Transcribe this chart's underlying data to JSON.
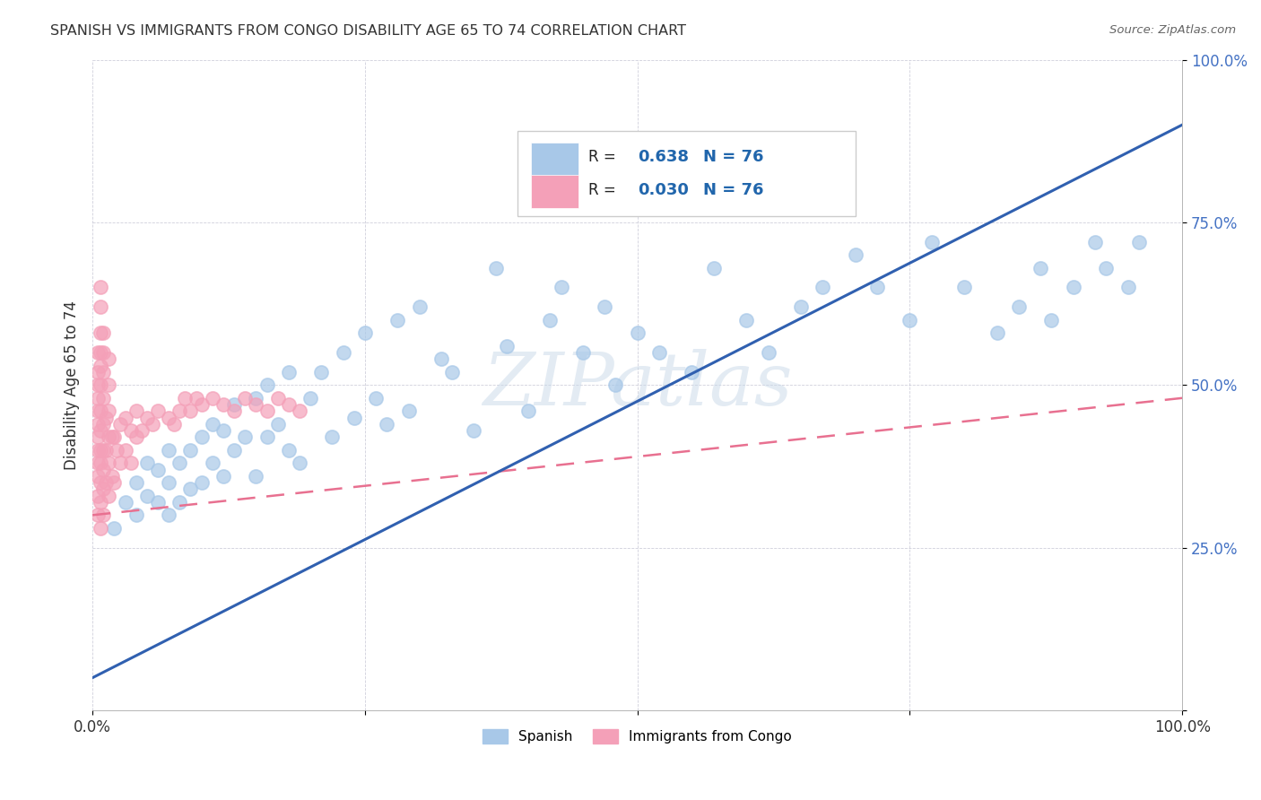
{
  "title": "SPANISH VS IMMIGRANTS FROM CONGO DISABILITY AGE 65 TO 74 CORRELATION CHART",
  "source_text": "Source: ZipAtlas.com",
  "ylabel": "Disability Age 65 to 74",
  "xlim": [
    0,
    1.0
  ],
  "ylim": [
    0,
    1.0
  ],
  "xtick_positions": [
    0.0,
    0.25,
    0.5,
    0.75,
    1.0
  ],
  "ytick_positions": [
    0.0,
    0.25,
    0.5,
    0.75,
    1.0
  ],
  "xtick_labels": [
    "0.0%",
    "",
    "",
    "",
    "100.0%"
  ],
  "ytick_labels": [
    "",
    "25.0%",
    "50.0%",
    "75.0%",
    "100.0%"
  ],
  "spanish_R": 0.638,
  "spanish_N": 76,
  "congo_R": 0.03,
  "congo_N": 76,
  "blue_scatter_color": "#a8c8e8",
  "pink_scatter_color": "#f4a0b8",
  "blue_line_color": "#3060b0",
  "pink_line_color": "#e87090",
  "tick_color": "#4472c4",
  "legend_R_color": "#2166ac",
  "watermark": "ZIPatlas",
  "title_color": "#333333",
  "source_color": "#666666",
  "blue_trend_start_y": 0.05,
  "blue_trend_end_y": 0.9,
  "pink_trend_start_y": 0.3,
  "pink_trend_end_y": 0.48,
  "spanish_x": [
    0.02,
    0.03,
    0.04,
    0.04,
    0.05,
    0.05,
    0.06,
    0.06,
    0.07,
    0.07,
    0.07,
    0.08,
    0.08,
    0.09,
    0.09,
    0.1,
    0.1,
    0.11,
    0.11,
    0.12,
    0.12,
    0.13,
    0.13,
    0.14,
    0.15,
    0.15,
    0.16,
    0.16,
    0.17,
    0.18,
    0.18,
    0.19,
    0.2,
    0.21,
    0.22,
    0.23,
    0.24,
    0.25,
    0.26,
    0.27,
    0.28,
    0.29,
    0.3,
    0.32,
    0.33,
    0.35,
    0.37,
    0.38,
    0.4,
    0.42,
    0.43,
    0.45,
    0.47,
    0.48,
    0.5,
    0.52,
    0.55,
    0.57,
    0.6,
    0.62,
    0.65,
    0.67,
    0.7,
    0.72,
    0.75,
    0.77,
    0.8,
    0.83,
    0.85,
    0.87,
    0.88,
    0.9,
    0.92,
    0.93,
    0.95,
    0.96
  ],
  "spanish_y": [
    0.28,
    0.32,
    0.3,
    0.35,
    0.33,
    0.38,
    0.32,
    0.37,
    0.3,
    0.35,
    0.4,
    0.32,
    0.38,
    0.34,
    0.4,
    0.35,
    0.42,
    0.38,
    0.44,
    0.36,
    0.43,
    0.4,
    0.47,
    0.42,
    0.36,
    0.48,
    0.42,
    0.5,
    0.44,
    0.4,
    0.52,
    0.38,
    0.48,
    0.52,
    0.42,
    0.55,
    0.45,
    0.58,
    0.48,
    0.44,
    0.6,
    0.46,
    0.62,
    0.54,
    0.52,
    0.43,
    0.68,
    0.56,
    0.46,
    0.6,
    0.65,
    0.55,
    0.62,
    0.5,
    0.58,
    0.55,
    0.52,
    0.68,
    0.6,
    0.55,
    0.62,
    0.65,
    0.7,
    0.65,
    0.6,
    0.72,
    0.65,
    0.58,
    0.62,
    0.68,
    0.6,
    0.65,
    0.72,
    0.68,
    0.65,
    0.72
  ],
  "congo_x": [
    0.005,
    0.005,
    0.005,
    0.005,
    0.005,
    0.005,
    0.005,
    0.005,
    0.005,
    0.005,
    0.005,
    0.005,
    0.007,
    0.007,
    0.007,
    0.007,
    0.007,
    0.007,
    0.007,
    0.007,
    0.007,
    0.007,
    0.007,
    0.007,
    0.007,
    0.01,
    0.01,
    0.01,
    0.01,
    0.01,
    0.01,
    0.01,
    0.01,
    0.01,
    0.012,
    0.012,
    0.012,
    0.015,
    0.015,
    0.015,
    0.015,
    0.015,
    0.015,
    0.018,
    0.018,
    0.02,
    0.02,
    0.022,
    0.025,
    0.025,
    0.03,
    0.03,
    0.035,
    0.035,
    0.04,
    0.04,
    0.045,
    0.05,
    0.055,
    0.06,
    0.07,
    0.075,
    0.08,
    0.085,
    0.09,
    0.095,
    0.1,
    0.11,
    0.12,
    0.13,
    0.14,
    0.15,
    0.16,
    0.17,
    0.18,
    0.19
  ],
  "congo_y": [
    0.3,
    0.33,
    0.36,
    0.38,
    0.4,
    0.42,
    0.44,
    0.46,
    0.48,
    0.5,
    0.52,
    0.55,
    0.28,
    0.32,
    0.35,
    0.38,
    0.4,
    0.43,
    0.46,
    0.5,
    0.53,
    0.55,
    0.58,
    0.62,
    0.65,
    0.3,
    0.34,
    0.37,
    0.4,
    0.44,
    0.48,
    0.52,
    0.55,
    0.58,
    0.35,
    0.4,
    0.45,
    0.33,
    0.38,
    0.42,
    0.46,
    0.5,
    0.54,
    0.36,
    0.42,
    0.35,
    0.42,
    0.4,
    0.38,
    0.44,
    0.4,
    0.45,
    0.38,
    0.43,
    0.42,
    0.46,
    0.43,
    0.45,
    0.44,
    0.46,
    0.45,
    0.44,
    0.46,
    0.48,
    0.46,
    0.48,
    0.47,
    0.48,
    0.47,
    0.46,
    0.48,
    0.47,
    0.46,
    0.48,
    0.47,
    0.46
  ]
}
